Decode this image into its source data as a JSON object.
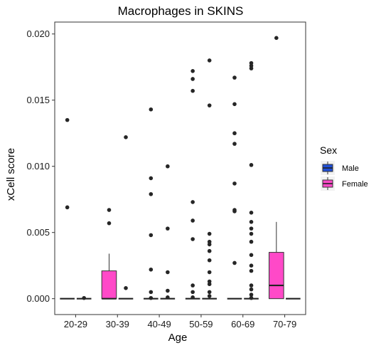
{
  "chart_data": {
    "type": "boxplot",
    "title": "Macrophages in SKINS",
    "xlabel": "Age",
    "ylabel": "xCell score",
    "categories": [
      "20-29",
      "30-39",
      "40-49",
      "50-59",
      "60-69",
      "70-79"
    ],
    "ylim": [
      -0.0012,
      0.0209
    ],
    "yticks": [
      0.0,
      0.005,
      0.01,
      0.015,
      0.02
    ],
    "ytick_labels": [
      "0.000",
      "0.005",
      "0.010",
      "0.015",
      "0.020"
    ],
    "grid": false,
    "legend": {
      "title": "Sex",
      "placement": "right",
      "items": [
        {
          "label": "Male",
          "color": "#1f4fd6"
        },
        {
          "label": "Female",
          "color": "#ff49c8"
        }
      ]
    },
    "series": [
      {
        "name": "Male",
        "color": "#1f4fd6",
        "boxes": [
          {
            "category": "20-29",
            "q1": 0,
            "median": 0,
            "q3": 0,
            "whisker_low": 0,
            "whisker_high": 0,
            "outliers": [
              0.0135,
              0.0069
            ]
          },
          {
            "category": "30-39",
            "q1": 0,
            "median": 0,
            "q3": 0.0021,
            "whisker_low": 0,
            "whisker_high": 0.0034,
            "outliers": [
              0.0067,
              0.0057
            ]
          },
          {
            "category": "40-49",
            "q1": 0,
            "median": 0,
            "q3": 0,
            "whisker_low": 0,
            "whisker_high": 0,
            "outliers": [
              0.0143,
              0.0091,
              0.0079,
              0.0048,
              0.0022,
              0.0005,
              5e-05
            ]
          },
          {
            "category": "50-59",
            "q1": 0,
            "median": 0,
            "q3": 0,
            "whisker_low": 0,
            "whisker_high": 0,
            "outliers": [
              0.0172,
              0.0166,
              0.0157,
              0.0073,
              0.0059,
              0.0045,
              0.001,
              0.0005,
              0.0001
            ]
          },
          {
            "category": "60-69",
            "q1": 0,
            "median": 0,
            "q3": 0,
            "whisker_low": 0,
            "whisker_high": 0,
            "outliers": [
              0.0167,
              0.0147,
              0.0125,
              0.0117,
              0.0087,
              0.0067,
              0.0066,
              0.0027
            ]
          },
          {
            "category": "70-79",
            "q1": 0,
            "median": 0.001,
            "q3": 0.0035,
            "whisker_low": 0,
            "whisker_high": 0.0058,
            "outliers": [
              0.0197
            ]
          }
        ]
      },
      {
        "name": "Female",
        "color": "#ff49c8",
        "boxes": [
          {
            "category": "20-29",
            "q1": 0,
            "median": 0,
            "q3": 0,
            "whisker_low": 0,
            "whisker_high": 0,
            "outliers": [
              5e-05
            ]
          },
          {
            "category": "30-39",
            "q1": 0,
            "median": 0,
            "q3": 0,
            "whisker_low": 0,
            "whisker_high": 0,
            "outliers": [
              0.0122,
              0.0008
            ]
          },
          {
            "category": "40-49",
            "q1": 0,
            "median": 0,
            "q3": 0,
            "whisker_low": 0,
            "whisker_high": 0,
            "outliers": [
              0.01,
              0.0053,
              0.002,
              0.0006,
              0.0001
            ]
          },
          {
            "category": "50-59",
            "q1": 0,
            "median": 0,
            "q3": 0,
            "whisker_low": 0,
            "whisker_high": 0,
            "outliers": [
              0.018,
              0.0146,
              0.0049,
              0.0043,
              0.0041,
              0.0036,
              0.0029,
              0.002,
              0.0013,
              0.0011,
              0.0005,
              0.0002
            ]
          },
          {
            "category": "60-69",
            "q1": 0,
            "median": 0,
            "q3": 0,
            "whisker_low": 0,
            "whisker_high": 0,
            "outliers": [
              0.0178,
              0.0176,
              0.0174,
              0.0101,
              0.0065,
              0.0058,
              0.0053,
              0.0049,
              0.0043,
              0.0033,
              0.0025,
              0.0021,
              0.001,
              0.0007,
              0.0003,
              5e-05
            ]
          },
          {
            "category": "70-79",
            "q1": 0,
            "median": 0,
            "q3": 0,
            "whisker_low": 0,
            "whisker_high": 0,
            "outliers": []
          }
        ]
      }
    ]
  }
}
